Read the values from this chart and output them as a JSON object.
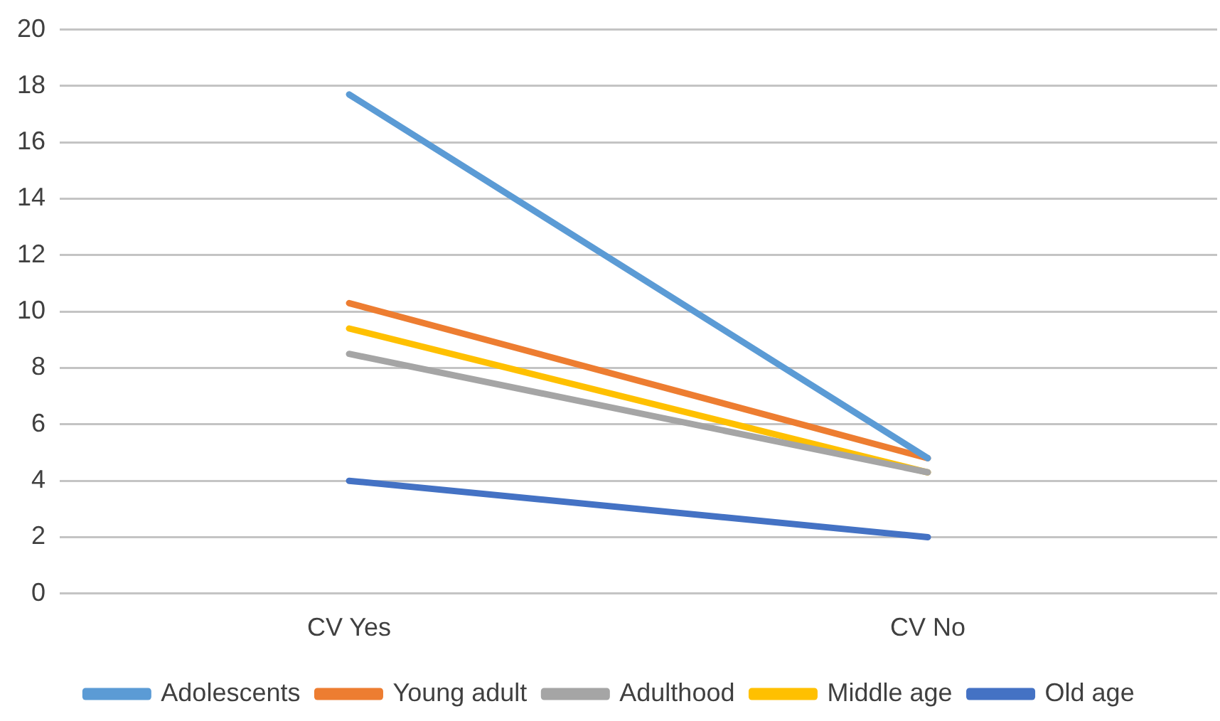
{
  "chart_data": {
    "type": "line",
    "categories": [
      "CV Yes",
      "CV No"
    ],
    "series": [
      {
        "name": "Adolescents",
        "color": "#5b9bd5",
        "values": [
          17.7,
          4.8
        ]
      },
      {
        "name": "Young adult",
        "color": "#ed7d31",
        "values": [
          10.3,
          4.8
        ]
      },
      {
        "name": "Adulthood",
        "color": "#a5a5a5",
        "values": [
          8.5,
          4.3
        ]
      },
      {
        "name": "Middle age",
        "color": "#ffc000",
        "values": [
          9.4,
          4.3
        ]
      },
      {
        "name": "Old age",
        "color": "#4472c4",
        "values": [
          4.0,
          2.0
        ]
      }
    ],
    "ylim": [
      0,
      20
    ],
    "yticks": [
      0,
      2,
      4,
      6,
      8,
      10,
      12,
      14,
      16,
      18,
      20
    ],
    "grid": "y",
    "legend": "bottom",
    "marker": "none",
    "line_style": "solid"
  }
}
